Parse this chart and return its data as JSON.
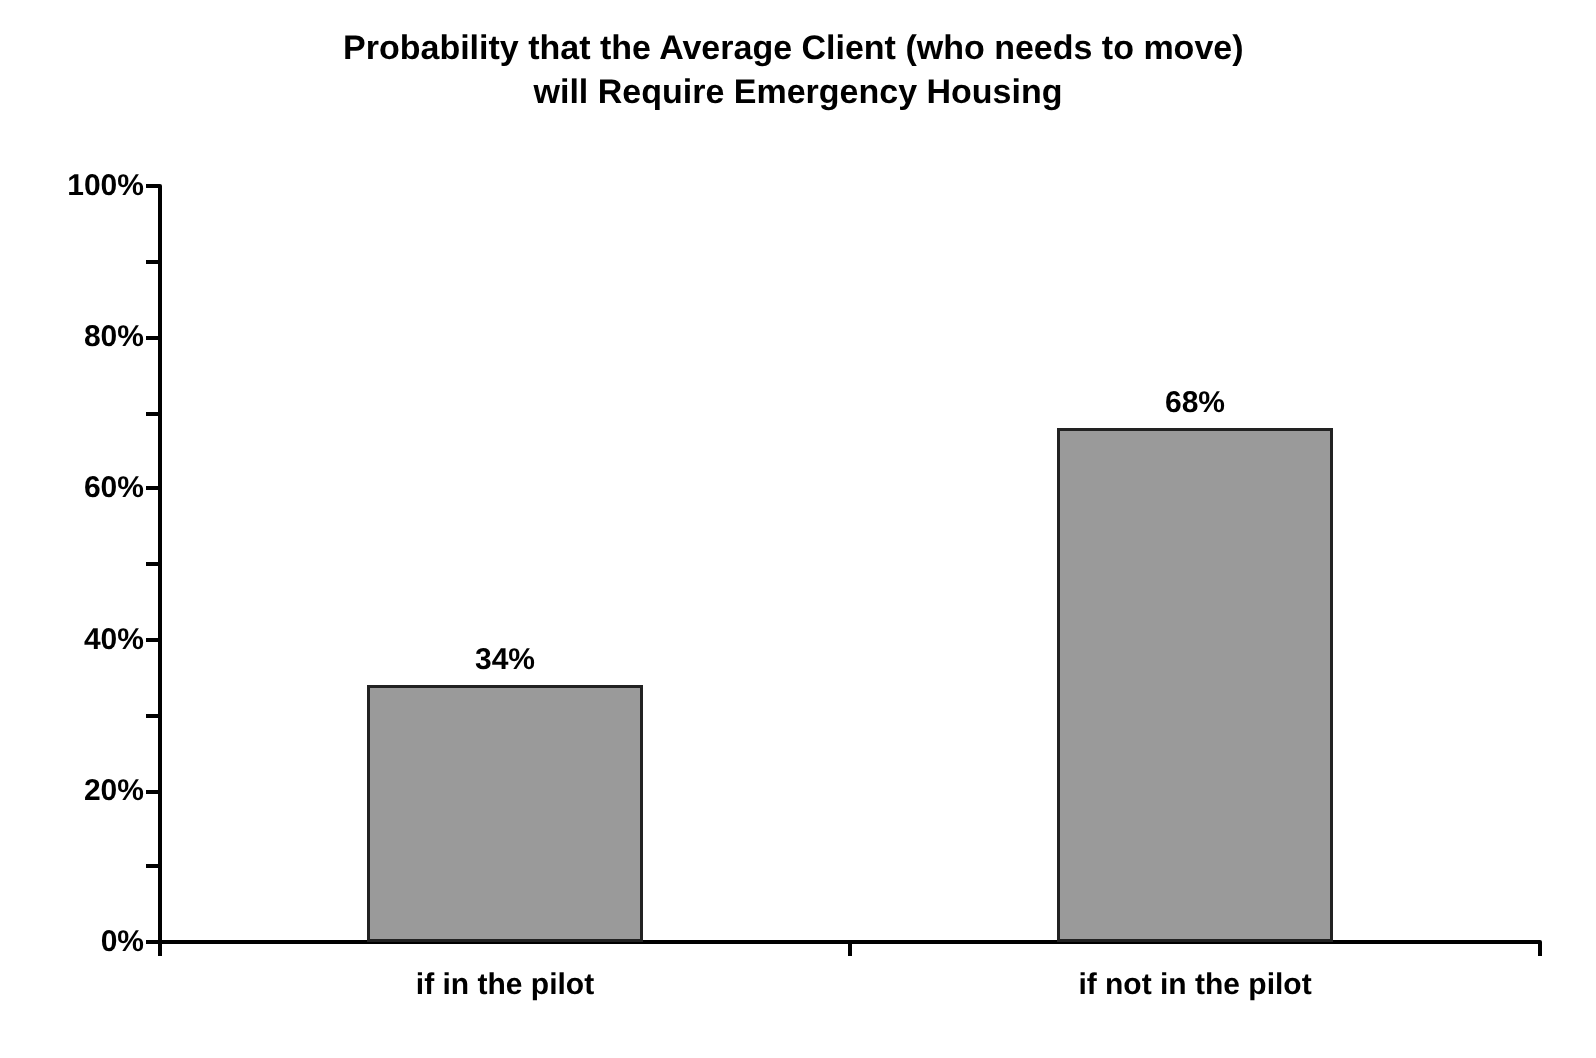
{
  "chart_data": {
    "type": "bar",
    "title": "Probability that the Average Client (who needs to move) will Require Emergency Housing",
    "categories": [
      "if in the pilot",
      "if not in the pilot"
    ],
    "values": [
      34,
      68
    ],
    "value_labels": [
      "34%",
      "68%"
    ],
    "color": "#9a9a9a",
    "ylim": [
      0,
      100
    ],
    "yticks": [
      {
        "value": 0,
        "label": "0%"
      },
      {
        "value": 10,
        "label": null
      },
      {
        "value": 20,
        "label": "20%"
      },
      {
        "value": 30,
        "label": null
      },
      {
        "value": 40,
        "label": "40%"
      },
      {
        "value": 50,
        "label": null
      },
      {
        "value": 60,
        "label": "60%"
      },
      {
        "value": 70,
        "label": null
      },
      {
        "value": 80,
        "label": "80%"
      },
      {
        "value": 90,
        "label": null
      },
      {
        "value": 100,
        "label": "100%"
      }
    ],
    "grid": false
  }
}
